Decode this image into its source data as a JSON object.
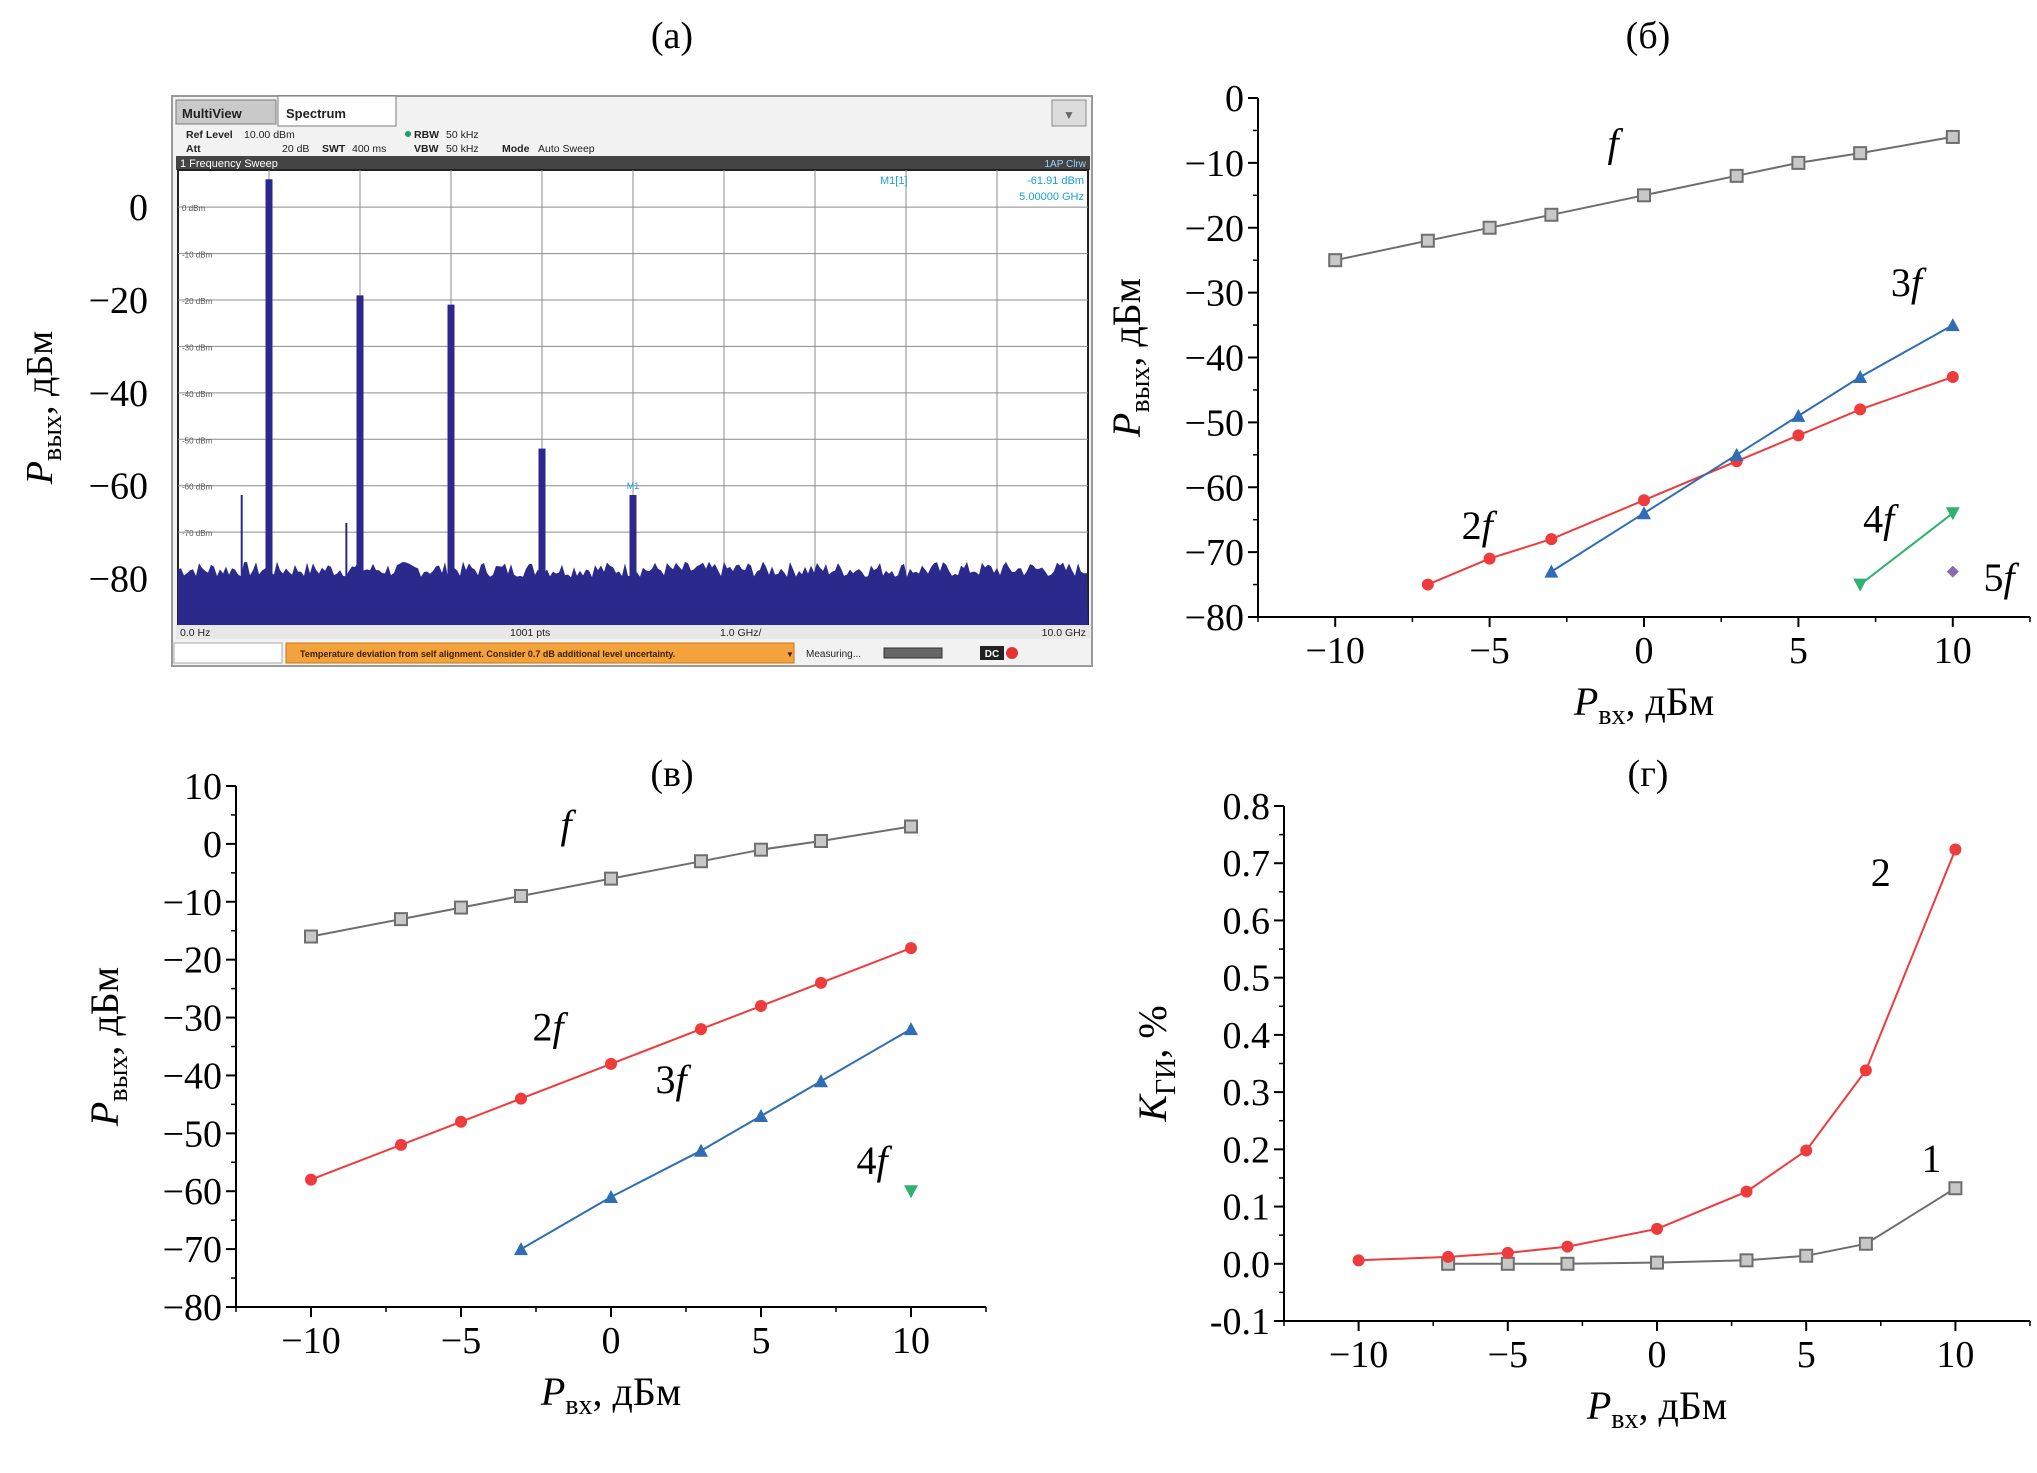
{
  "panels": {
    "a": {
      "label": "(а)"
    },
    "b": {
      "label": "(б)"
    },
    "v": {
      "label": "(в)"
    },
    "g": {
      "label": "(г)"
    }
  },
  "analyzer": {
    "tab_multiview": "MultiView",
    "tab_spectrum": "Spectrum",
    "ref_level_label": "Ref Level",
    "ref_level_value": "10.00 dBm",
    "att_label": "Att",
    "att_value": "20 dB",
    "swt_label": "SWT",
    "swt_value": "400 ms",
    "rbw_label": "RBW",
    "rbw_value": "50 kHz",
    "vbw_label": "VBW",
    "vbw_value": "50 kHz",
    "mode_label": "Mode",
    "mode_value": "Auto Sweep",
    "trace_title": "1 Frequency Sweep",
    "trace_mode": "1AP Clrw",
    "marker_name": "M1[1]",
    "marker_level": "-61.91 dBm",
    "marker_freq": "5.00000 GHz",
    "marker_tag": "M1",
    "grid_levels": [
      "0 dBm",
      "-10 dBm",
      "-20 dBm",
      "-30 dBm",
      "-40 dBm",
      "-50 dBm",
      "-60 dBm",
      "-70 dBm"
    ],
    "x_start": "0.0 Hz",
    "points": "1001 pts",
    "x_div": "1.0 GHz/",
    "x_stop": "10.0 GHz",
    "status_message": "Temperature deviation from self alignment. Consider 0.7 dB additional level uncertainty.",
    "measuring": "Measuring...",
    "dc_badge": "DC",
    "colors": {
      "trace": "#2b2a8c",
      "status_bar": "#f4a23c",
      "marker": "#1aa0d8"
    }
  },
  "chart_data": [
    {
      "id": "a",
      "type": "bar",
      "ylabel": "Pвых, дБм",
      "ylim": [
        -90,
        8
      ],
      "yticks": [
        "0",
        "−20",
        "−40",
        "−60",
        "−80"
      ],
      "ytick_values": [
        0,
        -20,
        -40,
        -60,
        -80
      ],
      "xlim": [
        0,
        10
      ],
      "x_unit": "GHz",
      "noise_floor": -78,
      "harmonics": [
        {
          "x": 1,
          "value": 6
        },
        {
          "x": 2,
          "value": -19
        },
        {
          "x": 3,
          "value": -21
        },
        {
          "x": 4,
          "value": -52
        },
        {
          "x": 5,
          "value": -62
        }
      ]
    },
    {
      "id": "b",
      "type": "line",
      "xlabel": "Pвх, дБм",
      "ylabel": "Pвых, дБм",
      "xlim": [
        -12.5,
        12.5
      ],
      "ylim": [
        -80,
        0
      ],
      "xticks": [
        -10,
        -5,
        0,
        5,
        10
      ],
      "xtick_labels": [
        "−10",
        "−5",
        "0",
        "5",
        "10"
      ],
      "yticks": [
        0,
        -10,
        -20,
        -30,
        -40,
        -50,
        -60,
        -70,
        -80
      ],
      "ytick_labels": [
        "0",
        "−10",
        "−20",
        "−30",
        "−40",
        "−50",
        "−60",
        "−70",
        "−80"
      ],
      "series": [
        {
          "name": "f",
          "color": "#6e6e6e",
          "marker": "square",
          "x": [
            -10,
            -7,
            -5,
            -3,
            0,
            3,
            5,
            7,
            10
          ],
          "values": [
            -25,
            -22,
            -20,
            -18,
            -15,
            -12,
            -10,
            -8.5,
            -6
          ]
        },
        {
          "name": "2f",
          "color": "#ee3b3b",
          "marker": "circle",
          "x": [
            -7,
            -5,
            -3,
            0,
            3,
            5,
            7,
            10
          ],
          "values": [
            -75,
            -71,
            -68,
            -62,
            -56,
            -52,
            -48,
            -43
          ]
        },
        {
          "name": "3f",
          "color": "#2f6db5",
          "marker": "triangle",
          "x": [
            -3,
            0,
            3,
            5,
            7,
            10
          ],
          "values": [
            -73,
            -64,
            -55,
            -49,
            -43,
            -35
          ]
        },
        {
          "name": "4f",
          "color": "#2db36b",
          "marker": "triangle-down",
          "x": [
            7,
            10
          ],
          "values": [
            -75,
            -64
          ]
        },
        {
          "name": "5f",
          "color": "#8a6bb3",
          "marker": "diamond",
          "x": [
            10
          ],
          "values": [
            -73
          ]
        }
      ]
    },
    {
      "id": "v",
      "type": "line",
      "xlabel": "Pвх, дБм",
      "ylabel": "Pвых, дБм",
      "xlim": [
        -12.5,
        12.5
      ],
      "ylim": [
        -80,
        10
      ],
      "xticks": [
        -10,
        -5,
        0,
        5,
        10
      ],
      "xtick_labels": [
        "−10",
        "−5",
        "0",
        "5",
        "10"
      ],
      "yticks": [
        10,
        0,
        -10,
        -20,
        -30,
        -40,
        -50,
        -60,
        -70,
        -80
      ],
      "ytick_labels": [
        "10",
        "0",
        "−10",
        "−20",
        "−30",
        "−40",
        "−50",
        "−60",
        "−70",
        "−80"
      ],
      "series": [
        {
          "name": "f",
          "color": "#6e6e6e",
          "marker": "square",
          "x": [
            -10,
            -7,
            -5,
            -3,
            0,
            3,
            5,
            7,
            10
          ],
          "values": [
            -16,
            -13,
            -11,
            -9,
            -6,
            -3,
            -1,
            0.5,
            3
          ]
        },
        {
          "name": "2f",
          "color": "#ee3b3b",
          "marker": "circle",
          "x": [
            -10,
            -7,
            -5,
            -3,
            0,
            3,
            5,
            7,
            10
          ],
          "values": [
            -58,
            -52,
            -48,
            -44,
            -38,
            -32,
            -28,
            -24,
            -18
          ]
        },
        {
          "name": "3f",
          "color": "#2f6db5",
          "marker": "triangle",
          "x": [
            -3,
            0,
            3,
            5,
            7,
            10
          ],
          "values": [
            -70,
            -61,
            -53,
            -47,
            -41,
            -32
          ]
        },
        {
          "name": "4f",
          "color": "#2db36b",
          "marker": "triangle-down",
          "x": [
            10
          ],
          "values": [
            -60
          ]
        }
      ]
    },
    {
      "id": "g",
      "type": "line",
      "xlabel": "Pвх, дБм",
      "ylabel": "KГИ, %",
      "xlim": [
        -12.5,
        12.5
      ],
      "ylim": [
        -0.1,
        0.8
      ],
      "xticks": [
        -10,
        -5,
        0,
        5,
        10
      ],
      "xtick_labels": [
        "−10",
        "−5",
        "0",
        "5",
        "10"
      ],
      "yticks": [
        0.8,
        0.7,
        0.6,
        0.5,
        0.4,
        0.3,
        0.2,
        0.1,
        0.0,
        -0.1
      ],
      "ytick_labels": [
        "0.8",
        "0.7",
        "0.6",
        "0.5",
        "0.4",
        "0.3",
        "0.2",
        "0.1",
        "0.0",
        "-0.1"
      ],
      "series": [
        {
          "name": "1",
          "color": "#6e6e6e",
          "marker": "square",
          "x": [
            -7,
            -5,
            -3,
            0,
            3,
            5,
            7,
            10
          ],
          "values": [
            0.0,
            0.0,
            0.0,
            0.002,
            0.006,
            0.014,
            0.035,
            0.132
          ]
        },
        {
          "name": "2",
          "color": "#ee3b3b",
          "marker": "circle",
          "x": [
            -10,
            -7,
            -5,
            -3,
            0,
            3,
            5,
            7,
            10
          ],
          "values": [
            0.006,
            0.012,
            0.019,
            0.03,
            0.061,
            0.126,
            0.198,
            0.338,
            0.724
          ]
        }
      ]
    }
  ]
}
